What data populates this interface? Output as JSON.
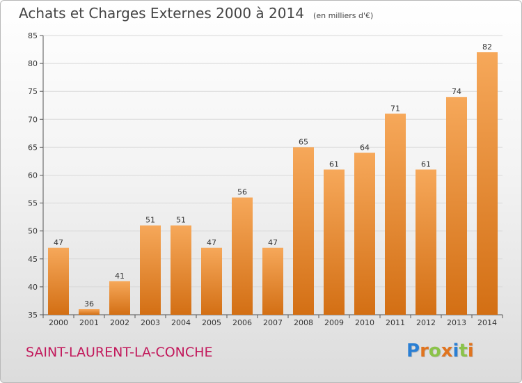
{
  "header": {
    "title": "Achats et Charges Externes 2000 à 2014",
    "subtitle": "(en milliers d'€)"
  },
  "commune": "SAINT-LAURENT-LA-CONCHE",
  "logo": {
    "text": "Proxiti",
    "letter_colors": [
      "#2a7fd4",
      "#e0741f",
      "#8bc34a",
      "#e0741f",
      "#2a7fd4",
      "#8bc34a",
      "#e0741f"
    ]
  },
  "colors": {
    "bar_top": "#f6a85a",
    "bar_bottom": "#d36f14",
    "axis": "#555555",
    "grid": "#d8d8d8"
  },
  "chart_data": {
    "type": "bar",
    "categories": [
      "2000",
      "2001",
      "2002",
      "2003",
      "2004",
      "2005",
      "2006",
      "2007",
      "2008",
      "2009",
      "2010",
      "2011",
      "2012",
      "2013",
      "2014"
    ],
    "values": [
      47,
      36,
      41,
      51,
      51,
      47,
      56,
      47,
      65,
      61,
      64,
      71,
      61,
      74,
      82
    ],
    "ylim": [
      35,
      85
    ],
    "yticks": [
      35,
      40,
      45,
      50,
      55,
      60,
      65,
      70,
      75,
      80,
      85
    ],
    "grid": true,
    "legend": "none"
  }
}
